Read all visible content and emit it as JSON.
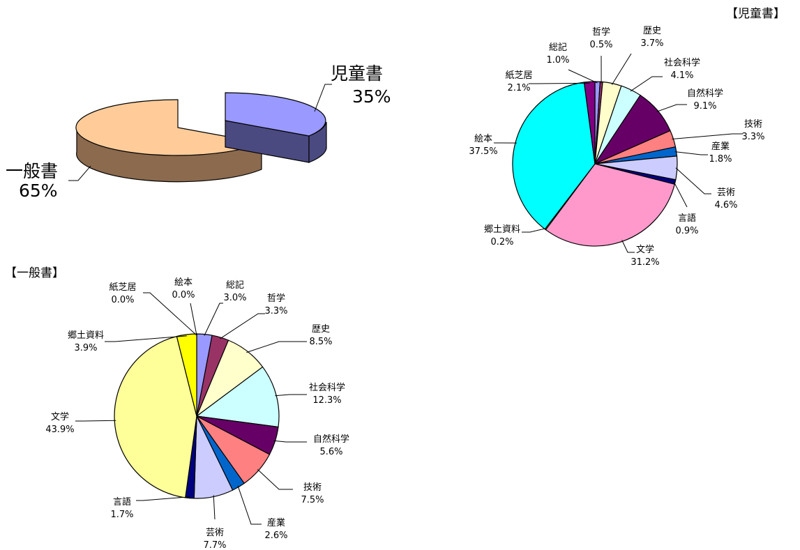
{
  "chart_data": [
    {
      "type": "pie",
      "title": "",
      "style": "3d-exploded",
      "categories": [
        "一般書",
        "児童書"
      ],
      "values": [
        65,
        35
      ],
      "value_labels": [
        "65%",
        "35%"
      ],
      "colors": [
        "#ffcc99",
        "#9999ff"
      ],
      "side_colors": [
        "#8b6a4e",
        "#4b4a80"
      ]
    },
    {
      "type": "pie",
      "title": "【児童書】",
      "categories": [
        "総記",
        "哲学",
        "歴史",
        "社会科学",
        "自然科学",
        "技術",
        "産業",
        "芸術",
        "言語",
        "文学",
        "郷土資料",
        "絵本",
        "紙芝居"
      ],
      "values": [
        1.0,
        0.5,
        3.7,
        4.1,
        9.1,
        3.3,
        1.8,
        4.6,
        0.9,
        31.2,
        0.2,
        37.5,
        2.1
      ],
      "value_labels": [
        "1.0%",
        "0.5%",
        "3.7%",
        "4.1%",
        "9.1%",
        "3.3%",
        "1.8%",
        "4.6%",
        "0.9%",
        "31.2%",
        "0.2%",
        "37.5%",
        "2.1%"
      ],
      "colors": [
        "#9999ff",
        "#993366",
        "#ffffcc",
        "#ccffff",
        "#660066",
        "#ff8080",
        "#0066cc",
        "#ccccff",
        "#000080",
        "#ff99cc",
        "#ffff00",
        "#00ffff",
        "#800080"
      ]
    },
    {
      "type": "pie",
      "title": "【一般書】",
      "categories": [
        "総記",
        "哲学",
        "歴史",
        "社会科学",
        "自然科学",
        "技術",
        "産業",
        "芸術",
        "言語",
        "文学",
        "郷土資料",
        "絵本",
        "紙芝居"
      ],
      "values": [
        3.0,
        3.3,
        8.5,
        12.3,
        5.6,
        7.5,
        2.6,
        7.7,
        1.7,
        43.9,
        3.9,
        0.0,
        0.0
      ],
      "value_labels": [
        "3.0%",
        "3.3%",
        "8.5%",
        "12.3%",
        "5.6%",
        "7.5%",
        "2.6%",
        "7.7%",
        "1.7%",
        "43.9%",
        "3.9%",
        "0.0%",
        "0.0%"
      ],
      "colors": [
        "#9999ff",
        "#993366",
        "#ffffcc",
        "#ccffff",
        "#660066",
        "#ff8080",
        "#0066cc",
        "#ccccff",
        "#000080",
        "#ffff99",
        "#ffff00",
        "#00ffff",
        "#800080"
      ]
    }
  ]
}
